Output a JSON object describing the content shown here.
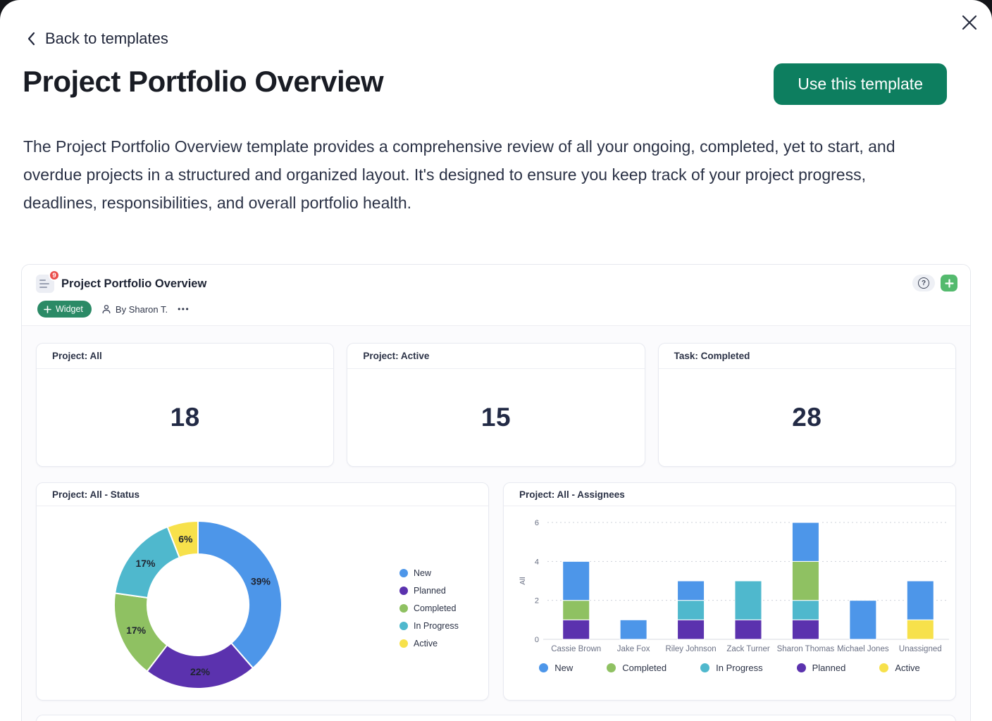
{
  "modal": {
    "back_label": "Back to templates",
    "title": "Project Portfolio Overview",
    "use_template_button": "Use this template",
    "description": "The Project Portfolio Overview template provides a comprehensive review of all your ongoing, completed, yet to start, and overdue projects in a structured and organized layout. It's designed to ensure you keep track of your project progress, deadlines, responsibilities, and overall portfolio health."
  },
  "dashboard": {
    "title": "Project Portfolio Overview",
    "badge_count": "9",
    "widget_button": "Widget",
    "byline": "By Sharon T.",
    "more_icon": "•••",
    "help_icon": "?",
    "stats": [
      {
        "label": "Project: All",
        "value": "18"
      },
      {
        "label": "Project: Active",
        "value": "15"
      },
      {
        "label": "Task: Completed",
        "value": "28"
      }
    ]
  },
  "colors": {
    "primary_button_green": "#0d7e5f",
    "widget_button_green": "#2b8a66",
    "add_button_green": "#54ba6e",
    "badge_red": "#ea4f4c",
    "text_navy": "#2b3246",
    "status_new_blue": "#4d96e9",
    "status_planned_purple": "#5b32ae",
    "status_completed_green": "#8fc162",
    "status_inprogress_teal": "#4fb8cd",
    "status_active_yellow": "#f7e14b"
  },
  "chart_data": [
    {
      "type": "pie",
      "donut": true,
      "title": "Project: All - Status",
      "labels": [
        "New",
        "Planned",
        "Completed",
        "In Progress",
        "Active"
      ],
      "values": [
        39,
        22,
        17,
        17,
        6
      ],
      "value_format": "percent",
      "colors": [
        "#4d96e9",
        "#5b32ae",
        "#8fc162",
        "#4fb8cd",
        "#f7e14b"
      ],
      "legend_position": "right",
      "slice_labels": [
        "39%",
        "22%",
        "17%",
        "17%",
        "6%"
      ]
    },
    {
      "type": "bar",
      "stacked": true,
      "title": "Project: All - Assignees",
      "categories": [
        "Cassie Brown",
        "Jake Fox",
        "Riley Johnson",
        "Zack Turner",
        "Sharon Thomas",
        "Michael Jones",
        "Unassigned"
      ],
      "series": [
        {
          "name": "Planned",
          "color": "#5b32ae",
          "values": [
            1,
            0,
            1,
            1,
            1,
            0,
            0
          ]
        },
        {
          "name": "Active",
          "color": "#f7e14b",
          "values": [
            0,
            0,
            0,
            0,
            0,
            0,
            1
          ]
        },
        {
          "name": "In Progress",
          "color": "#4fb8cd",
          "values": [
            0,
            0,
            1,
            2,
            1,
            0,
            0
          ]
        },
        {
          "name": "Completed",
          "color": "#8fc162",
          "values": [
            1,
            0,
            0,
            0,
            2,
            0,
            0
          ]
        },
        {
          "name": "New",
          "color": "#4d96e9",
          "values": [
            2,
            1,
            1,
            0,
            2,
            2,
            2
          ]
        }
      ],
      "totals": [
        4,
        1,
        3,
        3,
        6,
        2,
        3
      ],
      "legend_order": [
        "New",
        "Completed",
        "In Progress",
        "Planned",
        "Active"
      ],
      "ylabel": "All",
      "ylim": [
        0,
        6
      ],
      "yticks": [
        0,
        2,
        4,
        6
      ],
      "grid": "dotted-horizontal",
      "legend_position": "bottom"
    }
  ]
}
